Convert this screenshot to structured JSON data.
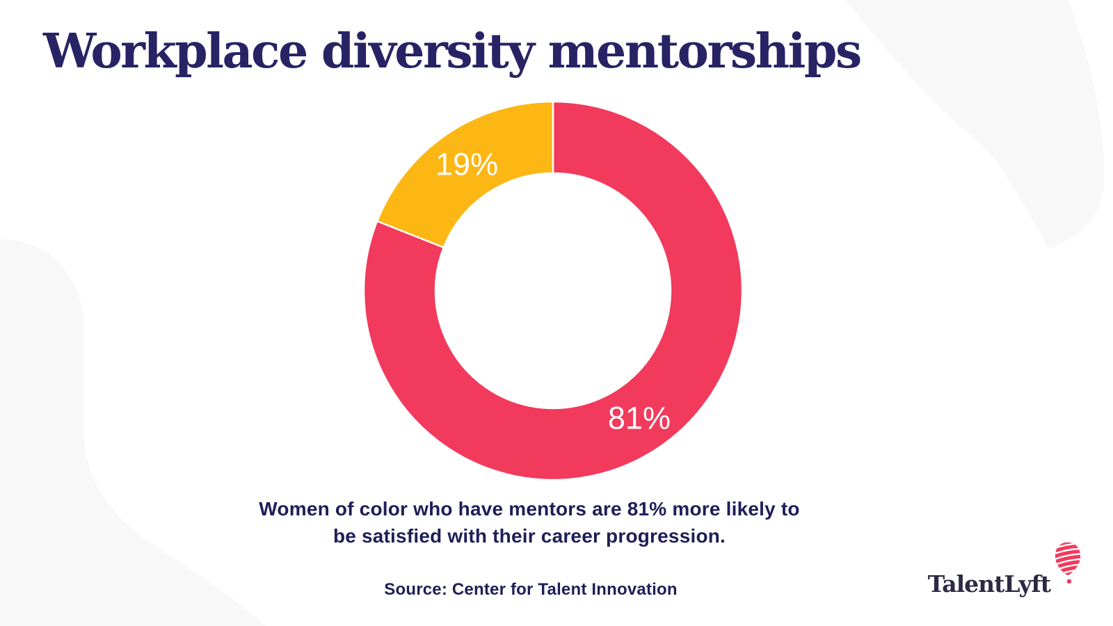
{
  "page": {
    "title": "Workplace diversity mentorships",
    "caption_line1": "Women of color who have mentors are 81% more likely to",
    "caption_line2": "be satisfied with their career progression.",
    "source": "Source: Center for Talent Innovation",
    "brand": "TalentLyft"
  },
  "colors": {
    "background": "#ffffff",
    "blob": "#f8f8f8",
    "title_navy": "#272364",
    "text_navy": "#1f1e58",
    "logo_navy": "#2a2a44",
    "pink": "#f23a5c",
    "yellow": "#fdb714",
    "slice_label": "#ffffff"
  },
  "chart_data": {
    "type": "pie",
    "subtype": "donut",
    "title": "Workplace diversity mentorships",
    "legend": "none",
    "start_angle_deg": 0,
    "direction": "clockwise",
    "inner_radius_ratio": 0.62,
    "slices": [
      {
        "label": "81%",
        "value": 81,
        "color": "#f23a5c"
      },
      {
        "label": "19%",
        "value": 19,
        "color": "#fdb714"
      }
    ],
    "annotation": "Women of color who have mentors are 81% more likely to be satisfied with their career progression.",
    "source": "Source: Center for Talent Innovation"
  }
}
